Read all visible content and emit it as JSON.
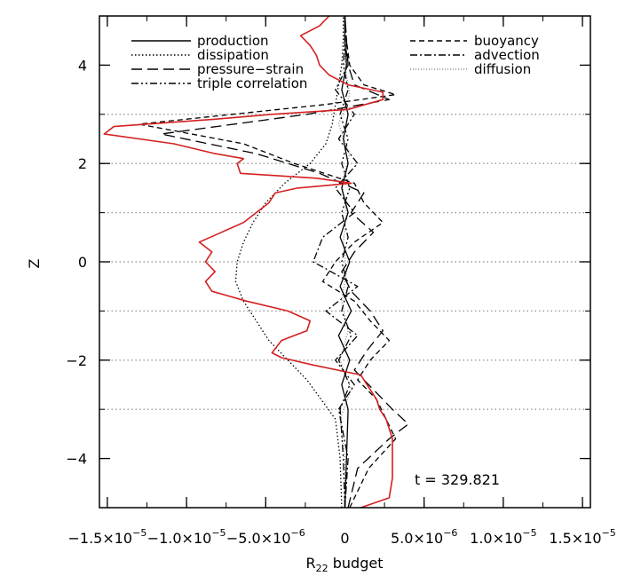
{
  "chart_data": {
    "type": "line",
    "title": "",
    "xlabel_main": "R",
    "xlabel_sub": "22",
    "xlabel_rest": " budget",
    "ylabel": "Z",
    "xlim": [
      -1.55e-05,
      1.55e-05
    ],
    "ylim": [
      -5,
      5
    ],
    "x_ticks": [
      {
        "value": -1.5e-05,
        "mant": "−1.5×10",
        "exp": "−5"
      },
      {
        "value": -1e-05,
        "mant": "−1.0×10",
        "exp": "−5"
      },
      {
        "value": -5e-06,
        "mant": "−5.0×10",
        "exp": "−6"
      },
      {
        "value": 0,
        "mant": "0",
        "exp": ""
      },
      {
        "value": 5e-06,
        "mant": "5.0×10",
        "exp": "−6"
      },
      {
        "value": 1e-05,
        "mant": "1.0×10",
        "exp": "−5"
      },
      {
        "value": 1.5e-05,
        "mant": "1.5×10",
        "exp": "−5"
      }
    ],
    "y_ticks": [
      -4,
      -2,
      0,
      2,
      4
    ],
    "hgrid_dotted": [
      3,
      2,
      1,
      0,
      -1,
      -2,
      -3
    ],
    "annotation": "t = 329.821",
    "legend_left": [
      "production",
      "dissipation",
      "pressure−strain",
      "triple correlation"
    ],
    "legend_right": [
      "buoyancy",
      "advection",
      "diffusion"
    ],
    "series": [
      {
        "name": "production",
        "style": "solid",
        "color": "#000000",
        "z": [
          -5,
          -4,
          -3,
          -2.5,
          -2,
          -1.5,
          -1,
          -0.5,
          0,
          0.5,
          1,
          1.5,
          2,
          2.5,
          3,
          3.5,
          4,
          4.5,
          5
        ],
        "x": [
          0,
          1e-07,
          2e-07,
          -2e-07,
          3e-07,
          -4e-07,
          4e-07,
          -3e-07,
          3e-07,
          -3e-07,
          2e-07,
          -2e-07,
          2e-07,
          -1e-07,
          2e-07,
          -2e-07,
          1e-07,
          0,
          0
        ]
      },
      {
        "name": "dissipation",
        "style": "dotted",
        "color": "#000000",
        "z": [
          -5,
          -4,
          -3.2,
          -2.8,
          -2.4,
          -2,
          -1.6,
          -1.2,
          -0.8,
          -0.4,
          0,
          0.4,
          0.8,
          1.2,
          1.6,
          2,
          2.4,
          2.8,
          3.2,
          3.6,
          4,
          4.5,
          5
        ],
        "x": [
          -2e-07,
          -3e-07,
          -6e-07,
          -1.5e-06,
          -2.4e-06,
          -3.6e-06,
          -4.8e-06,
          -5.6e-06,
          -6.4e-06,
          -6.9e-06,
          -6.8e-06,
          -6.4e-06,
          -5.8e-06,
          -5e-06,
          -3.8e-06,
          -2.2e-06,
          -1.2e-06,
          -8e-07,
          -6e-07,
          -4e-07,
          -2e-07,
          -1e-07,
          -1e-07
        ]
      },
      {
        "name": "pressure−strain",
        "style": "longdash",
        "color": "#000000",
        "z": [
          -5,
          -4.2,
          -3.6,
          -3.3,
          -3,
          -2.6,
          -2.2,
          -1.8,
          -1.4,
          -1,
          -0.6,
          -0.2,
          0.2,
          0.6,
          1,
          1.4,
          1.8,
          2.2,
          2.6,
          3,
          3.3,
          3.6,
          4,
          4.5,
          5
        ],
        "x": [
          2e-07,
          8e-07,
          2.8e-06,
          4e-06,
          3e-06,
          1.8e-06,
          6e-07,
          1.4e-06,
          2.4e-06,
          1.6e-06,
          4e-07,
          -2e-07,
          6e-07,
          1.8e-06,
          4e-07,
          1.2e-06,
          -1.6e-06,
          -5.6e-06,
          -1.16e-05,
          -2.4e-06,
          2.8e-06,
          6e-07,
          2e-07,
          1e-07,
          0
        ]
      },
      {
        "name": "triple correlation",
        "style": "dashdotdot",
        "color": "#000000",
        "z": [
          -5,
          -4,
          -3,
          -2.5,
          -2,
          -1.5,
          -1,
          -0.5,
          0,
          0.5,
          1,
          1.5,
          2,
          2.5,
          3,
          3.5,
          4,
          4.5,
          5
        ],
        "x": [
          0,
          -1e-07,
          -3e-07,
          3e-07,
          -4e-07,
          4e-07,
          -2e-07,
          2e-07,
          -2e-07,
          2e-07,
          -2e-07,
          3e-07,
          -2e-07,
          2e-07,
          -3e-07,
          2e-07,
          -1e-07,
          0,
          0
        ]
      },
      {
        "name": "buoyancy",
        "style": "shortdash",
        "color": "#000000",
        "z": [
          -5,
          -4.2,
          -3.6,
          -3.2,
          -2.8,
          -2.4,
          -2,
          -1.6,
          -1.2,
          -0.8,
          -0.4,
          0,
          0.4,
          0.8,
          1.2,
          1.6,
          2,
          2.4,
          2.8,
          3.2,
          3.4,
          3.6,
          4,
          4.5,
          5
        ],
        "x": [
          3e-07,
          1.5e-06,
          3.2e-06,
          2.6e-06,
          2e-06,
          8e-07,
          1.6e-06,
          2.8e-06,
          1.6e-06,
          6e-07,
          -1.4e-06,
          -6e-07,
          6e-07,
          2.4e-06,
          1.2e-06,
          6e-07,
          -3.2e-06,
          -6.4e-06,
          -1.3e-05,
          -1.2e-06,
          3.2e-06,
          1.2e-06,
          3e-07,
          1e-07,
          0
        ]
      },
      {
        "name": "advection",
        "style": "dashdot",
        "color": "#000000",
        "z": [
          -5,
          -4,
          -3,
          -2.5,
          -2,
          -1.5,
          -1,
          -0.5,
          0,
          0.5,
          1,
          1.5,
          2,
          2.5,
          3,
          3.5,
          4,
          4.5,
          5
        ],
        "x": [
          0,
          2e-07,
          -4e-07,
          6e-07,
          -6e-07,
          8e-07,
          -1.2e-06,
          8e-07,
          -2e-06,
          -1.4e-06,
          6e-07,
          -6e-07,
          8e-07,
          -4e-07,
          6e-07,
          -6e-07,
          2e-07,
          0,
          0
        ]
      },
      {
        "name": "diffusion",
        "style": "finedot",
        "color": "#888888",
        "z": [
          -5,
          -4,
          -3.2,
          -2.6,
          -2,
          -1.4,
          -0.8,
          -0.2,
          0.4,
          1,
          1.6,
          2.2,
          2.8,
          3.4,
          4,
          5
        ],
        "x": [
          0,
          0,
          -3e-07,
          4e-07,
          -3e-07,
          2e-07,
          -2e-07,
          1e-07,
          -1e-07,
          1e-07,
          -2e-07,
          3e-07,
          -4e-07,
          3e-07,
          0,
          0
        ]
      },
      {
        "name": "",
        "style": "solid",
        "color": "#d42020",
        "z": [
          -5,
          -4.8,
          -4.4,
          -4,
          -3.6,
          -3.2,
          -3,
          -2.8,
          -2.6,
          -2.3,
          -2.1,
          -1.95,
          -1.85,
          -1.6,
          -1.4,
          -1.2,
          -1.0,
          -0.8,
          -0.6,
          -0.4,
          -0.2,
          0,
          0.2,
          0.4,
          0.6,
          0.8,
          1.0,
          1.2,
          1.4,
          1.5,
          1.6,
          1.7,
          1.8,
          2.0,
          2.1,
          2.2,
          2.4,
          2.6,
          2.75,
          2.9,
          3.0,
          3.1,
          3.3,
          3.45,
          3.6,
          3.8,
          4.0,
          4.2,
          4.4,
          4.6,
          4.8,
          5
        ],
        "x": [
          1e-06,
          2.8e-06,
          3e-06,
          3e-06,
          3e-06,
          2.6e-06,
          2.2e-06,
          2e-06,
          1.6e-06,
          1e-06,
          -2e-06,
          -4e-06,
          -4.6e-06,
          -4e-06,
          -2.4e-06,
          -2.2e-06,
          -3.6e-06,
          -6.2e-06,
          -8.4e-06,
          -8.8e-06,
          -8.2e-06,
          -8.8e-06,
          -8.4e-06,
          -9.2e-06,
          -7.8e-06,
          -6.4e-06,
          -5.6e-06,
          -4.8e-06,
          -4.4e-06,
          -3e-06,
          4e-07,
          -1.8e-06,
          -6.6e-06,
          -6.8e-06,
          -6.4e-06,
          -8.2e-06,
          -1.08e-05,
          -1.52e-05,
          -1.46e-05,
          -8.2e-06,
          -4.6e-06,
          2e-07,
          2.4e-06,
          2.4e-06,
          2e-07,
          -1e-06,
          -1.6e-06,
          -1.8e-06,
          -2.2e-06,
          -2.8e-06,
          -1.6e-06,
          -1e-06
        ]
      }
    ]
  }
}
